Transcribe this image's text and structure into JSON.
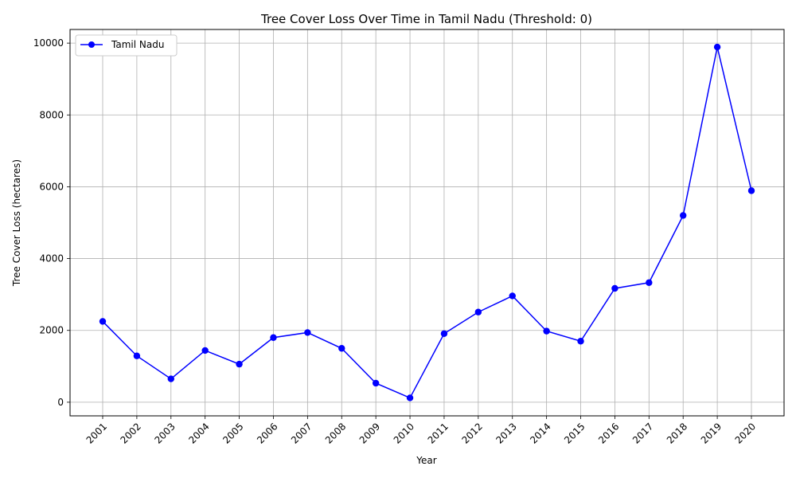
{
  "chart_data": {
    "type": "line",
    "title": "Tree Cover Loss Over Time in Tamil Nadu (Threshold: 0)",
    "xlabel": "Year",
    "ylabel": "Tree Cover Loss (hectares)",
    "categories": [
      "2001",
      "2002",
      "2003",
      "2004",
      "2005",
      "2006",
      "2007",
      "2008",
      "2009",
      "2010",
      "2011",
      "2012",
      "2013",
      "2014",
      "2015",
      "2016",
      "2017",
      "2018",
      "2019",
      "2020"
    ],
    "series": [
      {
        "name": "Tamil Nadu",
        "color": "#0000ff",
        "values": [
          2250,
          1290,
          650,
          1440,
          1060,
          1800,
          1940,
          1500,
          530,
          120,
          1910,
          2510,
          2960,
          1980,
          1700,
          3170,
          3330,
          5200,
          9890,
          5890
        ]
      }
    ],
    "yticks": [
      0,
      2000,
      4000,
      6000,
      8000,
      10000
    ],
    "ylim": [
      -380,
      10380
    ],
    "grid": true,
    "legend_position": "top-left"
  }
}
